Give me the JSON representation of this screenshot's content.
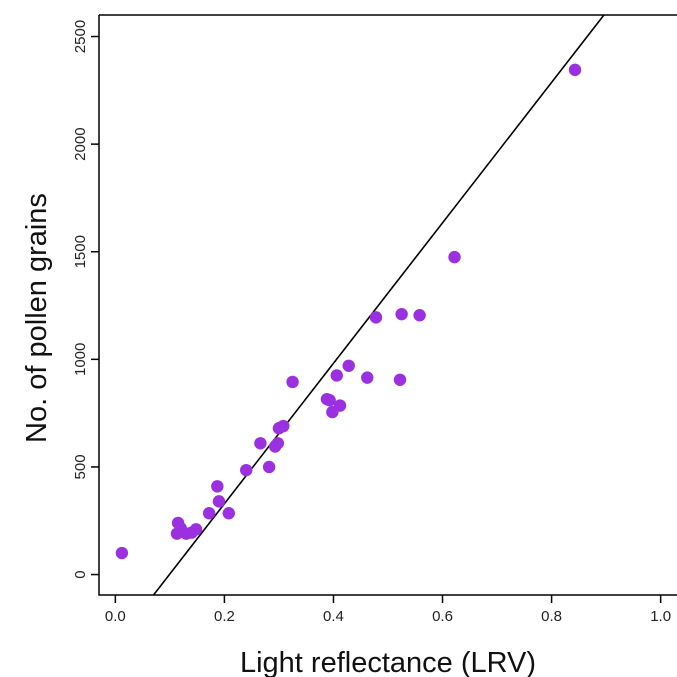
{
  "chart_data": {
    "type": "scatter",
    "title": "",
    "xlabel": "Light reflectance (LRV)",
    "ylabel": "No. of pollen grains",
    "xlim": [
      -0.03,
      1.03
    ],
    "ylim": [
      -95,
      2600
    ],
    "x_ticks": [
      0.0,
      0.2,
      0.4,
      0.6,
      0.8,
      1.0
    ],
    "x_tick_labels": [
      "0.0",
      "0.2",
      "0.4",
      "0.6",
      "0.8",
      "1.0"
    ],
    "y_ticks": [
      0,
      500,
      1000,
      1500,
      2000,
      2500
    ],
    "y_tick_labels": [
      "0",
      "500",
      "1000",
      "1500",
      "2000",
      "2500"
    ],
    "grid": false,
    "legend": "none",
    "point_color": "#9B30E0",
    "line_color": "#000000",
    "fit_line": {
      "x": [
        0.07,
        0.896
      ],
      "y": [
        -95,
        2600
      ]
    },
    "points": [
      {
        "x": 0.012,
        "y": 100
      },
      {
        "x": 0.113,
        "y": 190
      },
      {
        "x": 0.115,
        "y": 240
      },
      {
        "x": 0.12,
        "y": 215
      },
      {
        "x": 0.13,
        "y": 190
      },
      {
        "x": 0.14,
        "y": 195
      },
      {
        "x": 0.148,
        "y": 210
      },
      {
        "x": 0.172,
        "y": 285
      },
      {
        "x": 0.187,
        "y": 410
      },
      {
        "x": 0.19,
        "y": 340
      },
      {
        "x": 0.208,
        "y": 285
      },
      {
        "x": 0.24,
        "y": 485
      },
      {
        "x": 0.266,
        "y": 610
      },
      {
        "x": 0.282,
        "y": 500
      },
      {
        "x": 0.293,
        "y": 595
      },
      {
        "x": 0.298,
        "y": 610
      },
      {
        "x": 0.3,
        "y": 680
      },
      {
        "x": 0.308,
        "y": 690
      },
      {
        "x": 0.325,
        "y": 895
      },
      {
        "x": 0.388,
        "y": 815
      },
      {
        "x": 0.393,
        "y": 810
      },
      {
        "x": 0.398,
        "y": 755
      },
      {
        "x": 0.406,
        "y": 925
      },
      {
        "x": 0.412,
        "y": 785
      },
      {
        "x": 0.428,
        "y": 970
      },
      {
        "x": 0.462,
        "y": 915
      },
      {
        "x": 0.478,
        "y": 1195
      },
      {
        "x": 0.522,
        "y": 905
      },
      {
        "x": 0.525,
        "y": 1210
      },
      {
        "x": 0.558,
        "y": 1205
      },
      {
        "x": 0.622,
        "y": 1475
      },
      {
        "x": 0.843,
        "y": 2345
      }
    ]
  }
}
